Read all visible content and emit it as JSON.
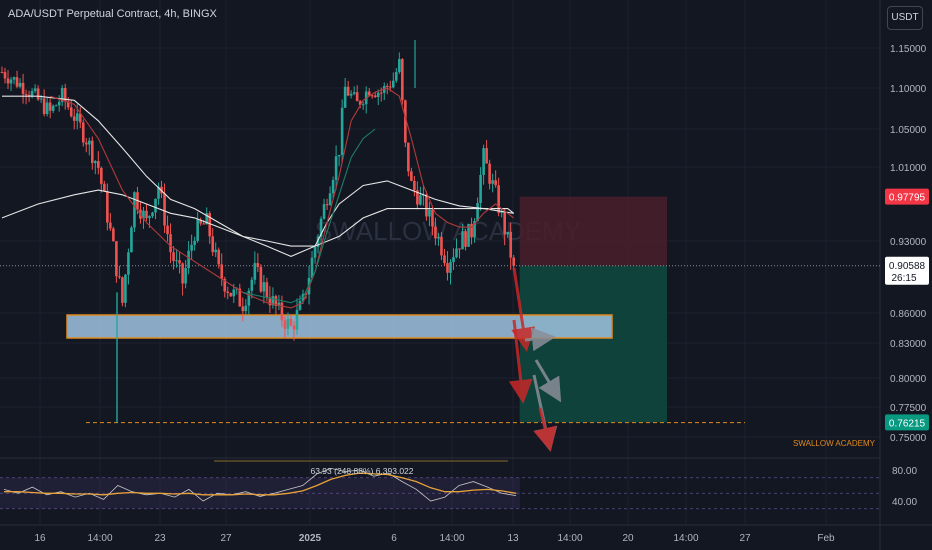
{
  "header": {
    "title": "ADA/USDT Perpetual Contract, 4h, BINGX",
    "currency_button": "USDT"
  },
  "watermark": "SWALLOW ACADEMY",
  "brand_label": "SWALLOW ACADEMY",
  "colors": {
    "background": "#131722",
    "bull": "#26a69a",
    "bear": "#ef5350",
    "ma_red": "#b23a3a",
    "ma_green": "#1e7d64",
    "ma_white": "#e6e6e6",
    "zone_fill": "#9fc3e0",
    "zone_border": "#e08a1e",
    "stop_fill": "#4a1e2a",
    "target_fill": "#0e4a3e",
    "rsi_line": "#c8c8c8",
    "rsi_ma": "#e8a23a",
    "rsi_band": "#7e57c2"
  },
  "price_axis": {
    "ticks": [
      "1.15000",
      "1.10000",
      "1.05000",
      "1.01000",
      "0.93000",
      "0.86000",
      "0.83000",
      "0.80000",
      "0.77500",
      "0.75000"
    ],
    "current_price": "0.90588",
    "countdown": "26:15",
    "stop_price": "0.97795",
    "target_price": "0.76215"
  },
  "rsi_axis": {
    "ticks": [
      "80.00",
      "40.00"
    ],
    "info": "63.93 (248.88%) 6,393.022"
  },
  "time_axis": {
    "labels": [
      "16",
      "14:00",
      "23",
      "27",
      "2025",
      "6",
      "14:00",
      "13",
      "14:00",
      "20",
      "14:00",
      "27",
      "Feb"
    ]
  },
  "chart_data": {
    "type": "candlestick",
    "symbol": "ADA/USDT Perpetual Contract",
    "interval": "4h",
    "exchange": "BINGX",
    "current_price": 0.90588,
    "support_zone": [
      0.835,
      0.858
    ],
    "long_wick_low": 0.762,
    "trade_box": {
      "entry": 0.9059,
      "stop": 0.97795,
      "target": 0.76215
    },
    "close_path": [
      [
        0,
        1.12
      ],
      [
        4,
        1.1
      ],
      [
        8,
        1.07
      ],
      [
        10,
        1.09
      ],
      [
        14,
        1.04
      ],
      [
        16,
        1.01
      ],
      [
        18,
        0.94
      ],
      [
        20,
        0.87
      ],
      [
        22,
        0.98
      ],
      [
        24,
        0.95
      ],
      [
        26,
        0.99
      ],
      [
        28,
        0.92
      ],
      [
        30,
        0.89
      ],
      [
        32,
        0.94
      ],
      [
        34,
        0.95
      ],
      [
        36,
        0.9
      ],
      [
        38,
        0.88
      ],
      [
        40,
        0.87
      ],
      [
        42,
        0.9
      ],
      [
        44,
        0.88
      ],
      [
        46,
        0.86
      ],
      [
        48,
        0.845
      ],
      [
        50,
        0.87
      ],
      [
        52,
        0.925
      ],
      [
        54,
        0.98
      ],
      [
        56,
        1.03
      ],
      [
        57,
        1.1
      ],
      [
        59,
        1.08
      ],
      [
        61,
        1.1
      ],
      [
        63,
        1.095
      ],
      [
        65,
        1.11
      ],
      [
        66,
        1.13
      ],
      [
        67,
        1.03
      ],
      [
        68,
        0.99
      ],
      [
        70,
        0.97
      ],
      [
        72,
        0.94
      ],
      [
        74,
        0.91
      ],
      [
        76,
        0.93
      ],
      [
        78,
        0.94
      ],
      [
        80,
        1.02
      ],
      [
        82,
        0.98
      ],
      [
        84,
        0.93
      ],
      [
        85,
        0.906
      ]
    ],
    "ma_fast_red": [
      [
        8,
        1.09
      ],
      [
        12,
        1.08
      ],
      [
        16,
        1.04
      ],
      [
        20,
        0.985
      ],
      [
        24,
        0.95
      ],
      [
        28,
        0.925
      ],
      [
        32,
        0.91
      ],
      [
        36,
        0.895
      ],
      [
        40,
        0.88
      ],
      [
        44,
        0.87
      ],
      [
        48,
        0.865
      ],
      [
        50,
        0.87
      ],
      [
        52,
        0.9
      ],
      [
        54,
        0.95
      ],
      [
        56,
        1.0
      ],
      [
        58,
        1.06
      ],
      [
        60,
        1.085
      ],
      [
        62,
        1.095
      ],
      [
        64,
        1.1
      ],
      [
        66,
        1.09
      ],
      [
        68,
        1.04
      ],
      [
        70,
        0.99
      ],
      [
        72,
        0.96
      ],
      [
        74,
        0.95
      ],
      [
        76,
        0.945
      ],
      [
        78,
        0.945
      ],
      [
        80,
        0.96
      ],
      [
        82,
        0.97
      ],
      [
        84,
        0.96
      ],
      [
        85,
        0.955
      ]
    ],
    "ma_mid_white": [
      [
        0,
        1.09
      ],
      [
        6,
        1.09
      ],
      [
        12,
        1.085
      ],
      [
        16,
        1.06
      ],
      [
        20,
        1.03
      ],
      [
        24,
        1.0
      ],
      [
        28,
        0.975
      ],
      [
        32,
        0.965
      ],
      [
        36,
        0.95
      ],
      [
        40,
        0.935
      ],
      [
        44,
        0.925
      ],
      [
        48,
        0.915
      ],
      [
        50,
        0.92
      ],
      [
        52,
        0.925
      ],
      [
        54,
        0.95
      ],
      [
        56,
        0.97
      ],
      [
        60,
        0.99
      ],
      [
        64,
        0.995
      ],
      [
        66,
        0.99
      ],
      [
        68,
        0.985
      ],
      [
        72,
        0.975
      ],
      [
        76,
        0.968
      ],
      [
        80,
        0.965
      ],
      [
        84,
        0.965
      ],
      [
        85,
        0.96
      ]
    ],
    "ma_slow_white": [
      [
        0,
        0.955
      ],
      [
        6,
        0.97
      ],
      [
        12,
        0.98
      ],
      [
        16,
        0.985
      ],
      [
        20,
        0.98
      ],
      [
        24,
        0.97
      ],
      [
        28,
        0.96
      ],
      [
        32,
        0.955
      ],
      [
        36,
        0.945
      ],
      [
        40,
        0.935
      ],
      [
        44,
        0.93
      ],
      [
        48,
        0.925
      ],
      [
        52,
        0.925
      ],
      [
        56,
        0.935
      ],
      [
        60,
        0.955
      ],
      [
        64,
        0.965
      ],
      [
        68,
        0.965
      ],
      [
        72,
        0.965
      ],
      [
        76,
        0.965
      ],
      [
        80,
        0.965
      ],
      [
        85,
        0.96
      ]
    ],
    "ma_green": [
      [
        40,
        0.88
      ],
      [
        44,
        0.875
      ],
      [
        48,
        0.87
      ],
      [
        50,
        0.875
      ],
      [
        52,
        0.9
      ],
      [
        54,
        0.94
      ],
      [
        56,
        0.98
      ],
      [
        58,
        1.02
      ],
      [
        60,
        1.04
      ],
      [
        62,
        1.05
      ]
    ],
    "rsi": {
      "levels": [
        70,
        50,
        30
      ],
      "values": [
        55,
        50,
        58,
        48,
        52,
        45,
        50,
        42,
        60,
        52,
        48,
        50,
        45,
        55,
        40,
        50,
        48,
        52,
        46,
        50,
        55,
        60,
        75,
        82,
        78,
        80,
        72,
        76,
        65,
        55,
        40,
        45,
        60,
        65,
        58,
        50,
        47
      ],
      "ma": [
        52,
        52,
        51,
        50,
        50,
        49,
        49,
        48,
        50,
        51,
        50,
        50,
        49,
        50,
        48,
        48,
        48,
        49,
        48,
        48,
        50,
        53,
        60,
        68,
        73,
        76,
        75,
        74,
        70,
        65,
        57,
        52,
        52,
        54,
        55,
        53,
        50
      ]
    }
  }
}
